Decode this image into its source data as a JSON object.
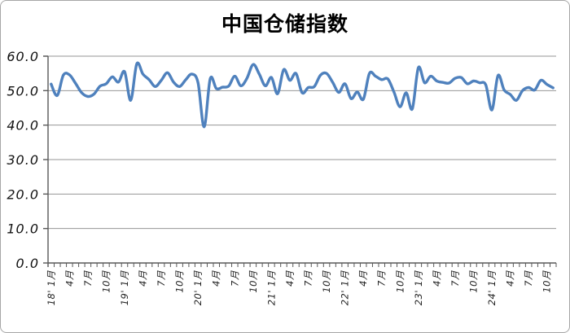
{
  "chart_data": {
    "type": "line",
    "title": "中国仓储指数",
    "xlabel": "",
    "ylabel": "",
    "ylim": [
      0,
      60
    ],
    "ytick_step": 10,
    "ytick_labels": [
      "0.0",
      "10.0",
      "20.0",
      "30.0",
      "40.0",
      "50.0",
      "60.0"
    ],
    "grid": true,
    "legend_position": "none",
    "smooth": true,
    "label_every": 3,
    "tick_labels": [
      "18' 1月",
      "4月",
      "7月",
      "10月",
      "19' 1月",
      "4月",
      "7月",
      "10月",
      "20' 1月",
      "4月",
      "7月",
      "10月",
      "21' 1月",
      "4月",
      "7月",
      "10月",
      "22' 1月",
      "4月",
      "7月",
      "10月",
      "23' 1月",
      "4月",
      "7月",
      "10月",
      "24' 1月",
      "4月",
      "7月",
      "10月"
    ],
    "x_start_month": "2018-01",
    "x_end_month": "2024-11",
    "values": [
      51.9,
      48.6,
      54.5,
      54.6,
      52.1,
      49.4,
      48.3,
      49.0,
      51.3,
      52.0,
      54.0,
      52.5,
      55.5,
      47.2,
      57.8,
      54.8,
      53.2,
      51.2,
      53.0,
      55.2,
      52.5,
      51.2,
      53.2,
      54.8,
      52.3,
      39.5,
      53.5,
      50.6,
      51.0,
      51.3,
      54.2,
      51.4,
      53.6,
      57.6,
      54.8,
      51.4,
      53.8,
      49.1,
      56.1,
      53.0,
      55.0,
      49.4,
      50.9,
      51.2,
      54.5,
      55.0,
      52.4,
      49.5,
      52.0,
      47.7,
      49.6,
      47.5,
      55.0,
      54.2,
      53.2,
      53.4,
      49.6,
      45.3,
      49.4,
      44.7,
      56.7,
      52.3,
      54.2,
      52.8,
      52.4,
      52.2,
      53.6,
      53.8,
      52.0,
      52.8,
      52.3,
      51.7,
      44.4,
      54.4,
      50.2,
      48.9,
      47.2,
      50.0,
      50.9,
      50.2,
      53.0,
      51.8,
      50.8
    ]
  },
  "colors": {
    "line": "#4F81BD",
    "grid": "#969696",
    "axis": "#595959",
    "title": "#000000",
    "background": "#FFFFFF",
    "border": "#A6A6A6"
  }
}
